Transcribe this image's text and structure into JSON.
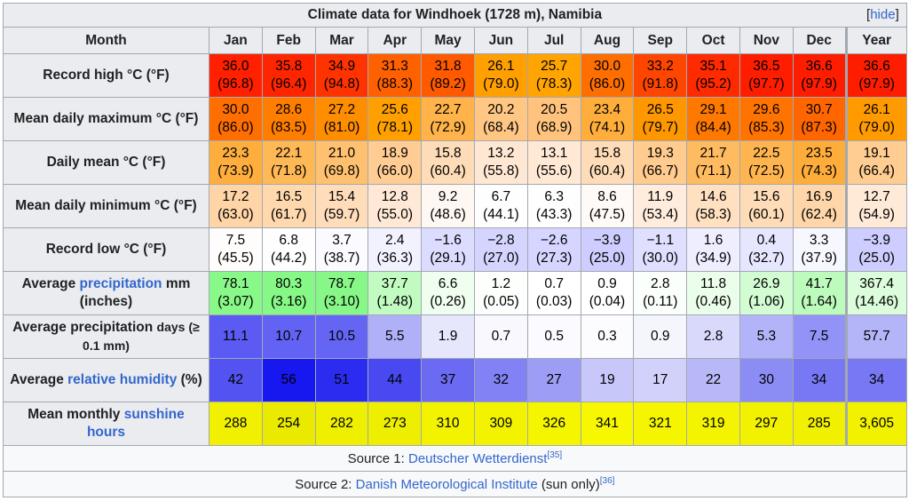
{
  "caption": "Climate data for Windhoek (1728 m), Namibia",
  "hide_bracket_open": "[",
  "hide_label": "hide",
  "hide_bracket_close": "]",
  "header": {
    "label": "Month",
    "months": [
      "Jan",
      "Feb",
      "Mar",
      "Apr",
      "May",
      "Jun",
      "Jul",
      "Aug",
      "Sep",
      "Oct",
      "Nov",
      "Dec"
    ],
    "year": "Year"
  },
  "rows": [
    {
      "label_parts": [
        {
          "t": "Record high °C (°F)"
        }
      ],
      "values": [
        "36.0",
        "35.8",
        "34.9",
        "31.3",
        "31.8",
        "26.1",
        "25.7",
        "30.0",
        "33.2",
        "35.1",
        "36.5",
        "36.6",
        "36.6"
      ],
      "values_alt": [
        "(96.8)",
        "(96.4)",
        "(94.8)",
        "(88.3)",
        "(89.2)",
        "(79.0)",
        "(78.3)",
        "(86.0)",
        "(91.8)",
        "(95.2)",
        "(97.7)",
        "(97.9)",
        "(97.9)"
      ],
      "colors": [
        "#ff2000",
        "#ff2500",
        "#ff3300",
        "#ff6000",
        "#ff5a00",
        "#ff9f00",
        "#ffa400",
        "#ff6e00",
        "#ff4600",
        "#ff2a00",
        "#ff1d00",
        "#ff1d00",
        "#ff1d00"
      ]
    },
    {
      "label_parts": [
        {
          "t": "Mean daily maximum °C (°F)"
        }
      ],
      "values": [
        "30.0",
        "28.6",
        "27.2",
        "25.6",
        "22.7",
        "20.2",
        "20.5",
        "23.4",
        "26.5",
        "29.1",
        "29.6",
        "30.7",
        "26.1"
      ],
      "values_alt": [
        "(86.0)",
        "(83.5)",
        "(81.0)",
        "(78.1)",
        "(72.9)",
        "(68.4)",
        "(68.9)",
        "(74.1)",
        "(79.7)",
        "(84.4)",
        "(85.3)",
        "(87.3)",
        "(79.0)"
      ],
      "colors": [
        "#ff6e00",
        "#ff7e00",
        "#ff8d00",
        "#ffa000",
        "#ffb34a",
        "#ffc684",
        "#ffc37d",
        "#ffae3c",
        "#ff9700",
        "#ff7900",
        "#ff7300",
        "#ff6600",
        "#ff9b00"
      ]
    },
    {
      "label_parts": [
        {
          "t": "Daily mean °C (°F)"
        }
      ],
      "values": [
        "23.3",
        "22.1",
        "21.0",
        "18.9",
        "15.8",
        "13.2",
        "13.1",
        "15.8",
        "19.3",
        "21.7",
        "22.5",
        "23.5",
        "19.1"
      ],
      "values_alt": [
        "(73.9)",
        "(71.8)",
        "(69.8)",
        "(66.0)",
        "(60.4)",
        "(55.8)",
        "(55.6)",
        "(60.4)",
        "(66.7)",
        "(71.1)",
        "(72.5)",
        "(74.3)",
        "(66.4)"
      ],
      "colors": [
        "#ffae3e",
        "#ffb856",
        "#ffc16f",
        "#ffcd94",
        "#ffdcb8",
        "#ffe8d3",
        "#ffe8d4",
        "#ffdcb8",
        "#ffcb8e",
        "#ffbb5f",
        "#ffb54f",
        "#ffad3a",
        "#ffcc91"
      ]
    },
    {
      "label_parts": [
        {
          "t": "Mean daily minimum °C (°F)"
        }
      ],
      "values": [
        "17.2",
        "16.5",
        "15.4",
        "12.8",
        "9.2",
        "6.7",
        "6.3",
        "8.6",
        "11.9",
        "14.6",
        "15.6",
        "16.9",
        "12.7"
      ],
      "values_alt": [
        "(63.0)",
        "(61.7)",
        "(59.7)",
        "(55.0)",
        "(48.6)",
        "(44.1)",
        "(43.3)",
        "(47.5)",
        "(53.4)",
        "(58.3)",
        "(60.1)",
        "(62.4)",
        "(54.9)"
      ],
      "colors": [
        "#ffd4a6",
        "#ffd8ae",
        "#ffddba",
        "#ffe9d6",
        "#fff8f2",
        "#fefeff",
        "#fefeff",
        "#fffaf5",
        "#ffecdd",
        "#ffe0c1",
        "#ffdcb8",
        "#ffd6aa",
        "#ffe9d7"
      ]
    },
    {
      "label_parts": [
        {
          "t": "Record low °C (°F)"
        }
      ],
      "values": [
        "7.5",
        "6.8",
        "3.7",
        "2.4",
        "−1.6",
        "−2.8",
        "−2.6",
        "−3.9",
        "−1.1",
        "1.6",
        "0.4",
        "3.3",
        "−3.9"
      ],
      "values_alt": [
        "(45.5)",
        "(44.2)",
        "(38.7)",
        "(36.3)",
        "(29.1)",
        "(27.0)",
        "(27.3)",
        "(25.0)",
        "(30.0)",
        "(34.9)",
        "(32.7)",
        "(37.9)",
        "(25.0)"
      ],
      "colors": [
        "#fffdfb",
        "#fffefe",
        "#fafaff",
        "#f2f2ff",
        "#dcdcff",
        "#d4d4ff",
        "#d5d5ff",
        "#cdcdff",
        "#dfdfff",
        "#eeeeff",
        "#e6e6ff",
        "#f7f7ff",
        "#cdcdff"
      ]
    },
    {
      "label_parts": [
        {
          "t": "Average "
        },
        {
          "t": "precipitation",
          "link": true
        },
        {
          "t": " mm (inches)"
        }
      ],
      "values": [
        "78.1",
        "80.3",
        "78.7",
        "37.7",
        "6.6",
        "1.2",
        "0.7",
        "0.9",
        "2.8",
        "11.8",
        "26.9",
        "41.7",
        "367.4"
      ],
      "values_alt": [
        "(3.07)",
        "(3.16)",
        "(3.10)",
        "(1.48)",
        "(0.26)",
        "(0.05)",
        "(0.03)",
        "(0.04)",
        "(0.11)",
        "(0.46)",
        "(1.06)",
        "(1.64)",
        "(14.46)"
      ],
      "colors": [
        "#88f888",
        "#86f886",
        "#87f887",
        "#c2fbc2",
        "#f0fef0",
        "#fdfffd",
        "#fefffe",
        "#feffe",
        "#fbfffb",
        "#ebfeeb",
        "#d2fcd2",
        "#bcfbbc",
        "#dbfddb"
      ]
    },
    {
      "label_parts": [
        {
          "t": "Average precipitation "
        },
        {
          "t": "days (≥ 0.1 mm)",
          "small": true
        }
      ],
      "values": [
        "11.1",
        "10.7",
        "10.5",
        "5.5",
        "1.9",
        "0.7",
        "0.5",
        "0.3",
        "0.9",
        "2.8",
        "5.3",
        "7.5",
        "57.7"
      ],
      "values_alt": [],
      "colors": [
        "#5b5bf3",
        "#6262f4",
        "#6565f4",
        "#b0b0f9",
        "#e6e6fd",
        "#f8f8fe",
        "#fafaff",
        "#fcfcff",
        "#f5f5fe",
        "#d9d9fc",
        "#b3b3f9",
        "#9393f7",
        "#b4b4f9"
      ]
    },
    {
      "label_parts": [
        {
          "t": "Average "
        },
        {
          "t": "relative humidity",
          "link": true
        },
        {
          "t": " (%)"
        }
      ],
      "values": [
        "42",
        "56",
        "51",
        "44",
        "37",
        "32",
        "27",
        "19",
        "17",
        "22",
        "30",
        "34",
        "34"
      ],
      "values_alt": [],
      "colors": [
        "#5353f1",
        "#1717f0",
        "#2c2cf0",
        "#4949f1",
        "#6a6af3",
        "#8282f4",
        "#9d9df6",
        "#c7c7fa",
        "#d1d1fb",
        "#b8b8f8",
        "#8c8cf5",
        "#7878f4",
        "#7878f4"
      ]
    },
    {
      "label_parts": [
        {
          "t": "Mean monthly "
        },
        {
          "t": "sunshine hours",
          "link": true
        }
      ],
      "values": [
        "288",
        "254",
        "282",
        "273",
        "310",
        "309",
        "326",
        "341",
        "321",
        "319",
        "297",
        "285",
        "3,605"
      ],
      "values_alt": [],
      "colors": [
        "#f0f000",
        "#eaea00",
        "#efef00",
        "#eeee00",
        "#f3f300",
        "#f3f300",
        "#f5f500",
        "#f7f700",
        "#f5f500",
        "#f4f400",
        "#f1f100",
        "#f0f000",
        "#f1f100"
      ]
    }
  ],
  "sources": [
    {
      "prefix": "Source 1: ",
      "link": "Deutscher Wetterdienst",
      "ref": "[35]",
      "suffix": ""
    },
    {
      "prefix": "Source 2: ",
      "link": "Danish Meteorological Institute",
      "ref": "[36]",
      "suffix": " (sun only)"
    }
  ]
}
